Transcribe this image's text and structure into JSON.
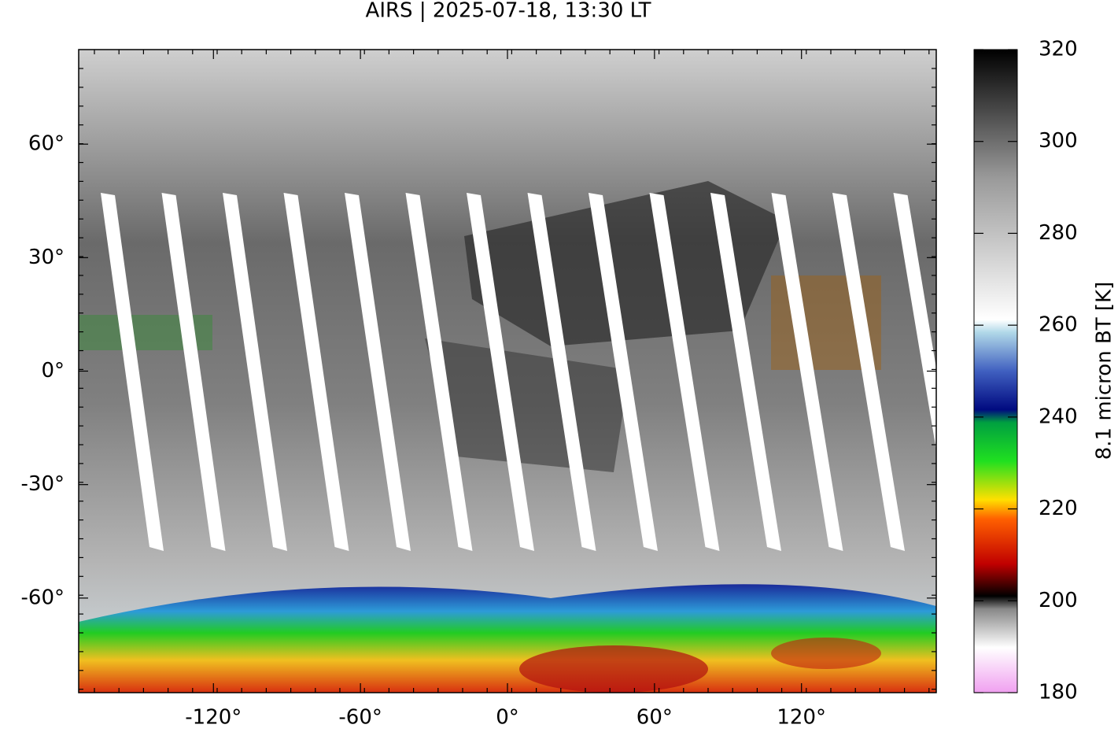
{
  "title": "AIRS | 2025-07-18, 13:30 LT",
  "map": {
    "xlim": [
      -175,
      175
    ],
    "ylim": [
      -85,
      85
    ],
    "xticks": [
      {
        "value": -120,
        "label": "-120°"
      },
      {
        "value": -60,
        "label": "-60°"
      },
      {
        "value": 0,
        "label": "0°"
      },
      {
        "value": 60,
        "label": "60°"
      },
      {
        "value": 120,
        "label": "120°"
      }
    ],
    "yticks": [
      {
        "value": 60,
        "label": "60°"
      },
      {
        "value": 30,
        "label": "30°"
      },
      {
        "value": 0,
        "label": "0°"
      },
      {
        "value": -30,
        "label": "-30°"
      },
      {
        "value": -60,
        "label": "-60°"
      }
    ]
  },
  "colorbar": {
    "label": "8.1 micron BT [K]",
    "lim": [
      180,
      320
    ],
    "ticks": [
      180,
      200,
      220,
      240,
      260,
      280,
      300,
      320
    ]
  }
}
